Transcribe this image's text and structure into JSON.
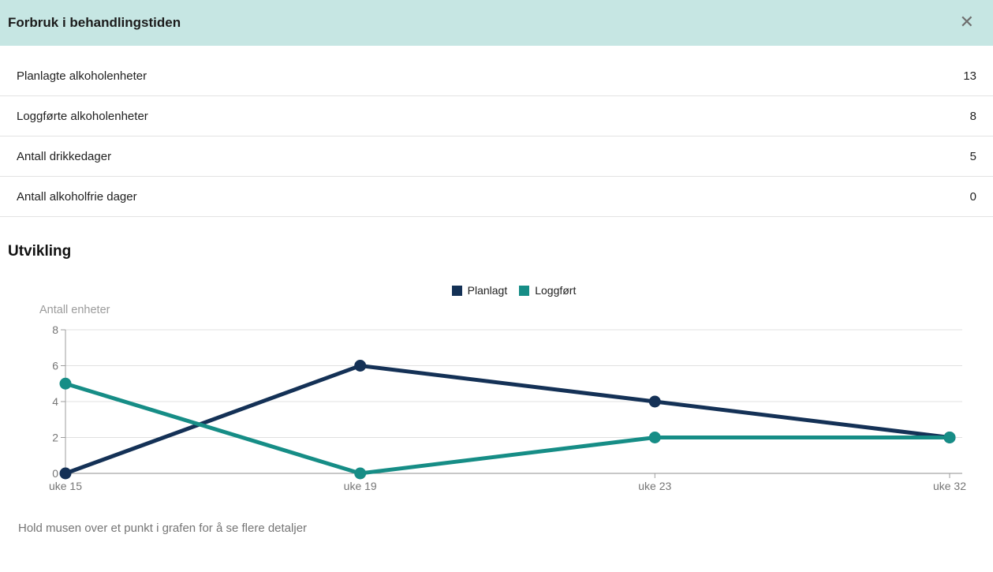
{
  "dialog": {
    "title": "Forbruk i behandlingstiden",
    "close_icon": "✕"
  },
  "summary": {
    "rows": [
      {
        "label": "Planlagte alkoholenheter",
        "value": "13"
      },
      {
        "label": "Loggførte alkoholenheter",
        "value": "8"
      },
      {
        "label": "Antall drikkedager",
        "value": "5"
      },
      {
        "label": "Antall alkoholfrie dager",
        "value": "0"
      }
    ]
  },
  "section": {
    "title": "Utvikling"
  },
  "chart_data": {
    "type": "line",
    "categories": [
      "uke 15",
      "uke 19",
      "uke 23",
      "uke 32"
    ],
    "series": [
      {
        "name": "Planlagt",
        "color": "#143156",
        "values": [
          0,
          6,
          4,
          2
        ]
      },
      {
        "name": "Loggført",
        "color": "#168d86",
        "values": [
          5,
          0,
          2,
          2
        ]
      }
    ],
    "ylabel": "Antall enheter",
    "yticks": [
      0,
      2,
      4,
      6,
      8
    ],
    "ylim": [
      0,
      8
    ],
    "grid": true,
    "legend_position": "top-center"
  },
  "hint": "Hold musen over et punkt i grafen for å se flere detaljer",
  "colors": {
    "header_bg": "#c6e6e3",
    "grid_line": "#e0e0e0",
    "axis_line": "#8f8f8f",
    "tick_text": "#757575",
    "muted_text": "#9b9b9b"
  }
}
